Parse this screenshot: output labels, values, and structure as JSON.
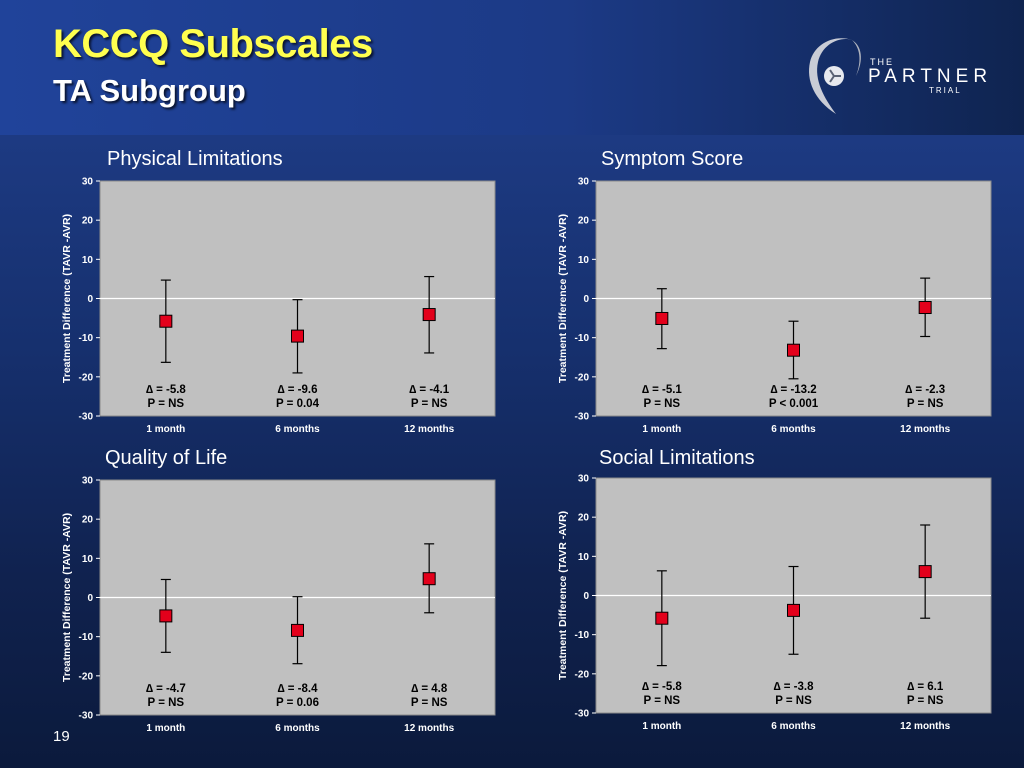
{
  "slide": {
    "title": "KCCQ Subscales",
    "subtitle": "TA Subgroup",
    "page_number": "19",
    "logo": {
      "the": "THE",
      "partner": "PARTNER",
      "trial": "TRIAL"
    }
  },
  "colors": {
    "plot_background": "#c0c0c0",
    "marker": "#e3001b",
    "title_yellow": "#ffff4f"
  },
  "chart_data": [
    {
      "type": "scatter",
      "title": "Physical Limitations",
      "ylabel": "Treatment Difference (TAVR -AVR)",
      "categories": [
        "1 month",
        "6 months",
        "12 months"
      ],
      "ylim": [
        -30,
        30
      ],
      "yticks": [
        "30",
        "20",
        "10",
        "0",
        "-10",
        "-20",
        "-30"
      ],
      "points": [
        {
          "value": -5.8,
          "low": -16.3,
          "high": 4.7,
          "delta_label": "∆ = -5.8",
          "p_label": "P = NS"
        },
        {
          "value": -9.6,
          "low": -19.0,
          "high": -0.3,
          "delta_label": "∆ = -9.6",
          "p_label": "P = 0.04"
        },
        {
          "value": -4.1,
          "low": -13.9,
          "high": 5.6,
          "delta_label": "∆ = -4.1",
          "p_label": "P = NS"
        }
      ]
    },
    {
      "type": "scatter",
      "title": "Symptom Score",
      "ylabel": "Treatment Difference (TAVR -AVR)",
      "categories": [
        "1 month",
        "6 months",
        "12 months"
      ],
      "ylim": [
        -30,
        30
      ],
      "yticks": [
        "30",
        "20",
        "10",
        "0",
        "-10",
        "-20",
        "-30"
      ],
      "points": [
        {
          "value": -5.1,
          "low": -12.8,
          "high": 2.5,
          "delta_label": "∆ = -5.1",
          "p_label": "P = NS"
        },
        {
          "value": -13.2,
          "low": -20.5,
          "high": -5.8,
          "delta_label": "∆ = -13.2",
          "p_label": "P < 0.001"
        },
        {
          "value": -2.3,
          "low": -9.7,
          "high": 5.2,
          "delta_label": "∆ = -2.3",
          "p_label": "P = NS"
        }
      ]
    },
    {
      "type": "scatter",
      "title": "Quality of Life",
      "ylabel": "Treatment Difference (TAVR -AVR)",
      "categories": [
        "1 month",
        "6 months",
        "12 months"
      ],
      "ylim": [
        -30,
        30
      ],
      "yticks": [
        "30",
        "20",
        "10",
        "0",
        "-10",
        "-20",
        "-30"
      ],
      "points": [
        {
          "value": -4.7,
          "low": -14.0,
          "high": 4.6,
          "delta_label": "∆ = -4.7",
          "p_label": "P = NS"
        },
        {
          "value": -8.4,
          "low": -16.9,
          "high": 0.2,
          "delta_label": "∆ = -8.4",
          "p_label": "P = 0.06"
        },
        {
          "value": 4.8,
          "low": -3.9,
          "high": 13.7,
          "delta_label": "∆ = 4.8",
          "p_label": "P = NS"
        }
      ]
    },
    {
      "type": "scatter",
      "title": "Social Limitations",
      "ylabel": "Treatment Difference (TAVR -AVR)",
      "categories": [
        "1 month",
        "6 months",
        "12 months"
      ],
      "ylim": [
        -30,
        30
      ],
      "yticks": [
        "30",
        "20",
        "10",
        "0",
        "-10",
        "-20",
        "-30"
      ],
      "points": [
        {
          "value": -5.8,
          "low": -17.9,
          "high": 6.3,
          "delta_label": "∆ = -5.8",
          "p_label": "P = NS"
        },
        {
          "value": -3.8,
          "low": -15.0,
          "high": 7.4,
          "delta_label": "∆ = -3.8",
          "p_label": "P = NS"
        },
        {
          "value": 6.1,
          "low": -5.8,
          "high": 18.0,
          "delta_label": "∆ = 6.1",
          "p_label": "P = NS"
        }
      ]
    }
  ]
}
